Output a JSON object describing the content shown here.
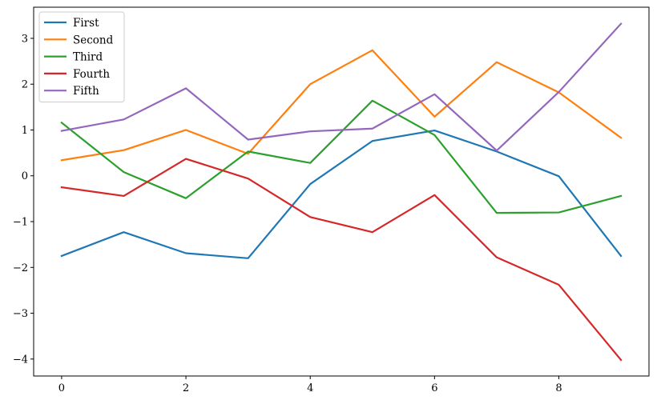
{
  "chart_data": {
    "type": "line",
    "title": "",
    "xlabel": "",
    "ylabel": "",
    "x": [
      0,
      1,
      2,
      3,
      4,
      5,
      6,
      7,
      8,
      9
    ],
    "xlim": [
      -0.45,
      9.45
    ],
    "ylim": [
      -4.37,
      3.68
    ],
    "xticks": [
      0,
      2,
      4,
      6,
      8
    ],
    "yticks": [
      -4,
      -3,
      -2,
      -1,
      0,
      1,
      2,
      3
    ],
    "grid": false,
    "legend_position": "top-left",
    "series": [
      {
        "name": "First",
        "color": "#1f77b4",
        "values": [
          -1.75,
          -1.23,
          -1.69,
          -1.8,
          -0.18,
          0.76,
          0.99,
          0.53,
          -0.01,
          -1.75
        ]
      },
      {
        "name": "Second",
        "color": "#ff7f0e",
        "values": [
          0.34,
          0.56,
          1.0,
          0.48,
          2.0,
          2.74,
          1.29,
          2.48,
          1.82,
          0.83
        ]
      },
      {
        "name": "Third",
        "color": "#2ca02c",
        "values": [
          1.16,
          0.08,
          -0.49,
          0.53,
          0.28,
          1.64,
          0.89,
          -0.81,
          -0.8,
          -0.44
        ]
      },
      {
        "name": "Fourth",
        "color": "#d62728",
        "values": [
          -0.25,
          -0.44,
          0.37,
          -0.06,
          -0.9,
          -1.23,
          -0.42,
          -1.78,
          -2.38,
          -4.02
        ]
      },
      {
        "name": "Fifth",
        "color": "#9467bd",
        "values": [
          0.98,
          1.23,
          1.91,
          0.79,
          0.97,
          1.03,
          1.78,
          0.55,
          1.83,
          3.32
        ]
      }
    ]
  }
}
